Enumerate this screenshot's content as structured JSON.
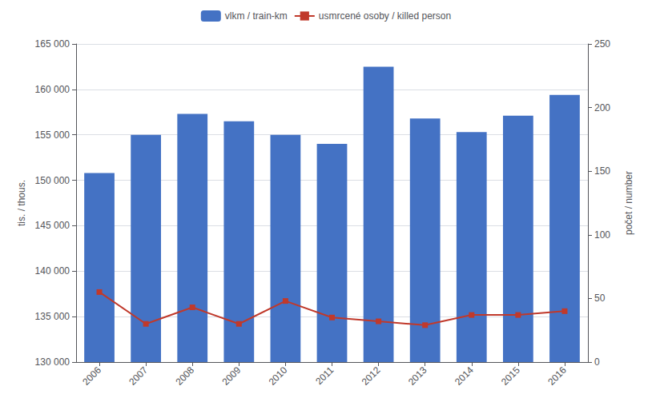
{
  "chart_data": {
    "type": "bar",
    "categories": [
      "2006",
      "2007",
      "2008",
      "2009",
      "2010",
      "2011",
      "2012",
      "2013",
      "2014",
      "2015",
      "2016"
    ],
    "series": [
      {
        "name": "vlkm / train-km",
        "type": "bar",
        "color": "#4472c4",
        "values": [
          150800,
          155000,
          157300,
          156500,
          155000,
          154000,
          162500,
          156800,
          155300,
          157100,
          159400
        ]
      },
      {
        "name": "usmrcené osoby / killed person",
        "type": "line",
        "color": "#c0392b",
        "marker": "square",
        "axis": "y2",
        "values": [
          55,
          30,
          43,
          30,
          48,
          35,
          32,
          29,
          37,
          37,
          40
        ]
      }
    ],
    "ylabel": "tis. / thous.",
    "y2label": "počet / number",
    "ylim": [
      130000,
      165000
    ],
    "yticks": [
      {
        "value": 130000,
        "label": "130 000"
      },
      {
        "value": 135000,
        "label": "135 000"
      },
      {
        "value": 140000,
        "label": "140 000"
      },
      {
        "value": 145000,
        "label": "145 000"
      },
      {
        "value": 150000,
        "label": "150 000"
      },
      {
        "value": 155000,
        "label": "155 000"
      },
      {
        "value": 160000,
        "label": "160 000"
      },
      {
        "value": 165000,
        "label": "165 000"
      }
    ],
    "y2lim": [
      0,
      250
    ],
    "y2ticks": [
      0,
      50,
      100,
      150,
      200,
      250
    ],
    "grid": true,
    "legend": "top"
  }
}
